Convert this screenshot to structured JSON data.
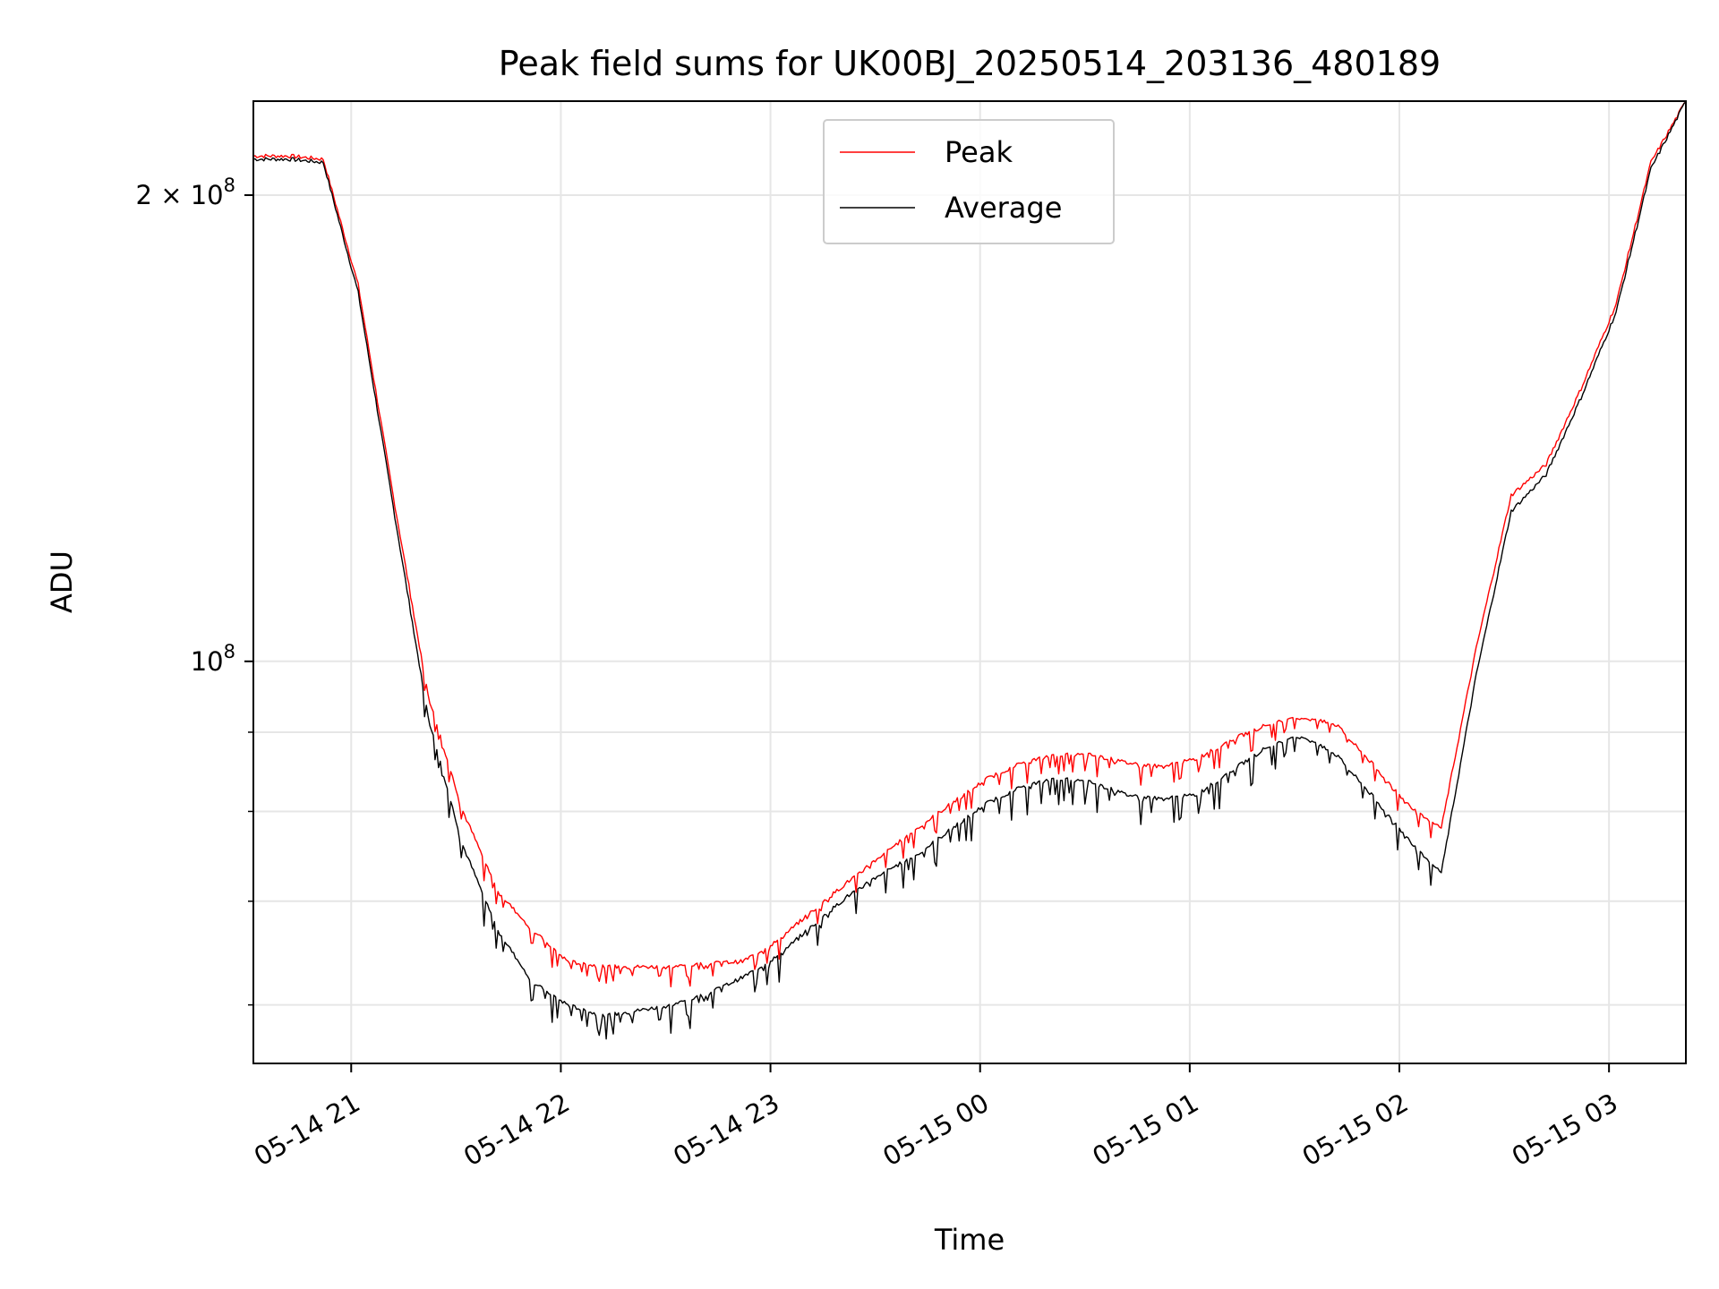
{
  "chart_data": {
    "type": "line",
    "title": "Peak field sums for UK00BJ_20250514_203136_480189",
    "xlabel": "Time",
    "ylabel": "ADU",
    "yscale": "log",
    "xlim": [
      "05-14 20:32",
      "05-15 03:22"
    ],
    "ylim": [
      55000000,
      230000000
    ],
    "x_ticks": [
      "05-14 21",
      "05-14 22",
      "05-14 23",
      "05-15 00",
      "05-15 01",
      "05-15 02",
      "05-15 03"
    ],
    "y_ticks": [
      {
        "value": 100000000,
        "label": "10",
        "exp": "8"
      },
      {
        "value": 200000000,
        "label": "2 × 10",
        "exp": "8"
      }
    ],
    "grid": true,
    "legend_position": "upper center",
    "x_minutes": [
      0,
      10,
      20,
      30,
      40,
      50,
      60,
      70,
      80,
      90,
      100,
      110,
      120,
      130,
      140,
      150,
      160,
      170,
      180,
      190,
      200,
      210,
      220,
      230,
      240,
      250,
      260,
      270,
      280,
      290,
      300,
      310,
      320,
      330,
      340,
      350,
      360,
      370,
      380,
      390,
      400,
      410
    ],
    "series": [
      {
        "name": "Peak",
        "color": "#ff0000",
        "values": [
          212000000,
          212000000,
          211000000,
          175000000,
          128000000,
          95000000,
          80000000,
          71000000,
          67000000,
          64000000,
          63500000,
          63500000,
          63500000,
          63800000,
          64000000,
          66000000,
          69000000,
          72000000,
          75000000,
          78000000,
          81000000,
          84000000,
          86000000,
          87000000,
          87000000,
          86000000,
          85500000,
          86500000,
          89000000,
          91000000,
          92000000,
          91000000,
          86000000,
          81000000,
          78000000,
          102000000,
          128000000,
          134000000,
          150000000,
          170000000,
          210000000,
          230000000
        ]
      },
      {
        "name": "Average",
        "color": "#000000",
        "values": [
          211000000,
          211000000,
          210000000,
          173000000,
          126000000,
          92000000,
          76000000,
          67000000,
          62000000,
          60000000,
          59000000,
          59500000,
          60000000,
          61000000,
          62500000,
          64500000,
          67500000,
          70500000,
          73000000,
          75000000,
          78000000,
          81000000,
          83000000,
          84000000,
          83500000,
          82000000,
          81500000,
          82000000,
          85000000,
          88000000,
          89500000,
          87000000,
          82000000,
          77000000,
          73000000,
          98000000,
          125000000,
          132000000,
          148000000,
          168000000,
          208000000,
          230000000
        ]
      }
    ]
  }
}
